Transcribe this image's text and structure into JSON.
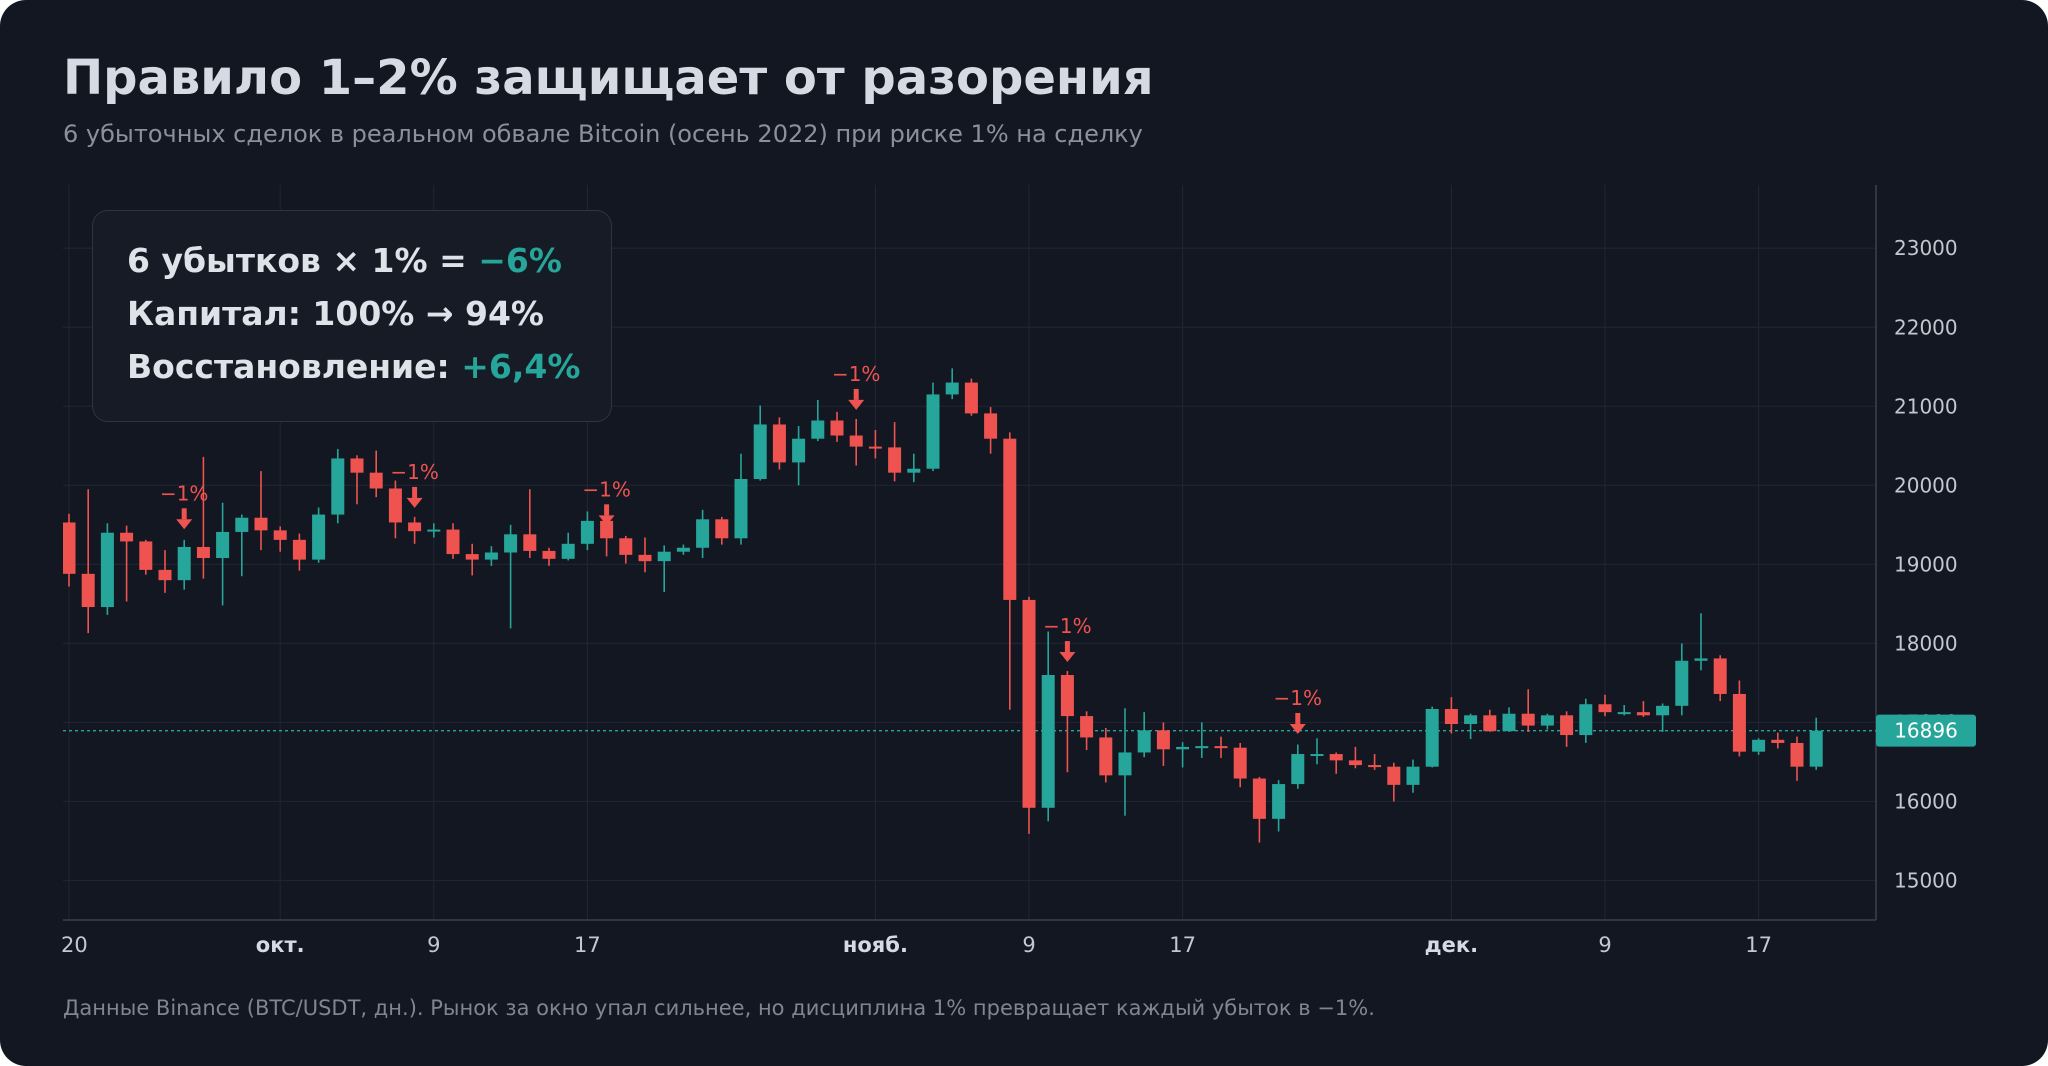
{
  "title": "Правило 1–2% защищает от разорения",
  "subtitle": "6 убыточных сделок в реальном обвале Bitcoin (осень 2022) при риске 1% на сделку",
  "footnote": "Данные Binance (BTC/USDT, дн.). Рынок за окно упал сильнее, но дисциплина 1% превращает каждый убыток в −1%.",
  "info": {
    "line1_prefix": "6 убытков × 1% = ",
    "line1_value": "−6%",
    "line2": "Капитал: 100% → 94%",
    "line3_prefix": "Восстановление: ",
    "line3_value": "+6,4%"
  },
  "colors": {
    "background": "#131722",
    "up": "#26a69a",
    "down": "#ef5350",
    "grid": "#1f2430",
    "marker": "#ef5350"
  },
  "chart_data": {
    "type": "candlestick",
    "title": "",
    "xlabel": "",
    "ylabel": "",
    "ylim": [
      14500,
      23800
    ],
    "grid": true,
    "y_ticks": [
      15000,
      16000,
      17000,
      18000,
      19000,
      20000,
      21000,
      22000,
      23000
    ],
    "x_ticks": [
      {
        "date": "2022-09-20",
        "label": "20",
        "bold": false
      },
      {
        "date": "2022-10-01",
        "label": "окт.",
        "bold": true
      },
      {
        "date": "2022-10-09",
        "label": "9",
        "bold": false
      },
      {
        "date": "2022-10-17",
        "label": "17",
        "bold": false
      },
      {
        "date": "2022-11-01",
        "label": "нояб.",
        "bold": true
      },
      {
        "date": "2022-11-09",
        "label": "9",
        "bold": false
      },
      {
        "date": "2022-11-17",
        "label": "17",
        "bold": false
      },
      {
        "date": "2022-12-01",
        "label": "дек.",
        "bold": true
      },
      {
        "date": "2022-12-09",
        "label": "9",
        "bold": false
      },
      {
        "date": "2022-12-17",
        "label": "17",
        "bold": false
      }
    ],
    "last_price": 16896,
    "candles": [
      {
        "date": "2022-09-20",
        "o": 19530,
        "h": 19640,
        "l": 18720,
        "c": 18880
      },
      {
        "date": "2022-09-21",
        "o": 18880,
        "h": 19950,
        "l": 18130,
        "c": 18460
      },
      {
        "date": "2022-09-22",
        "o": 18460,
        "h": 19520,
        "l": 18360,
        "c": 19400
      },
      {
        "date": "2022-09-23",
        "o": 19400,
        "h": 19490,
        "l": 18530,
        "c": 19290
      },
      {
        "date": "2022-09-24",
        "o": 19290,
        "h": 19310,
        "l": 18870,
        "c": 18930
      },
      {
        "date": "2022-09-25",
        "o": 18930,
        "h": 19180,
        "l": 18640,
        "c": 18800
      },
      {
        "date": "2022-09-26",
        "o": 18800,
        "h": 19310,
        "l": 18680,
        "c": 19220
      },
      {
        "date": "2022-09-27",
        "o": 19220,
        "h": 20360,
        "l": 18820,
        "c": 19080
      },
      {
        "date": "2022-09-28",
        "o": 19080,
        "h": 19780,
        "l": 18480,
        "c": 19410
      },
      {
        "date": "2022-09-29",
        "o": 19410,
        "h": 19630,
        "l": 18850,
        "c": 19590
      },
      {
        "date": "2022-09-30",
        "o": 19590,
        "h": 20180,
        "l": 19180,
        "c": 19430
      },
      {
        "date": "2022-10-01",
        "o": 19430,
        "h": 19480,
        "l": 19160,
        "c": 19310
      },
      {
        "date": "2022-10-02",
        "o": 19310,
        "h": 19390,
        "l": 18920,
        "c": 19060
      },
      {
        "date": "2022-10-03",
        "o": 19060,
        "h": 19720,
        "l": 19020,
        "c": 19630
      },
      {
        "date": "2022-10-04",
        "o": 19630,
        "h": 20460,
        "l": 19520,
        "c": 20340
      },
      {
        "date": "2022-10-05",
        "o": 20340,
        "h": 20380,
        "l": 19760,
        "c": 20160
      },
      {
        "date": "2022-10-06",
        "o": 20160,
        "h": 20440,
        "l": 19850,
        "c": 19960
      },
      {
        "date": "2022-10-07",
        "o": 19960,
        "h": 20060,
        "l": 19330,
        "c": 19530
      },
      {
        "date": "2022-10-08",
        "o": 19530,
        "h": 19600,
        "l": 19260,
        "c": 19420
      },
      {
        "date": "2022-10-09",
        "o": 19420,
        "h": 19520,
        "l": 19340,
        "c": 19440
      },
      {
        "date": "2022-10-10",
        "o": 19440,
        "h": 19520,
        "l": 19070,
        "c": 19130
      },
      {
        "date": "2022-10-11",
        "o": 19130,
        "h": 19260,
        "l": 18860,
        "c": 19060
      },
      {
        "date": "2022-10-12",
        "o": 19060,
        "h": 19230,
        "l": 18980,
        "c": 19150
      },
      {
        "date": "2022-10-13",
        "o": 19150,
        "h": 19500,
        "l": 18190,
        "c": 19380
      },
      {
        "date": "2022-10-14",
        "o": 19380,
        "h": 19950,
        "l": 19080,
        "c": 19170
      },
      {
        "date": "2022-10-15",
        "o": 19170,
        "h": 19210,
        "l": 18980,
        "c": 19070
      },
      {
        "date": "2022-10-16",
        "o": 19070,
        "h": 19400,
        "l": 19050,
        "c": 19260
      },
      {
        "date": "2022-10-17",
        "o": 19260,
        "h": 19670,
        "l": 19180,
        "c": 19550
      },
      {
        "date": "2022-10-18",
        "o": 19550,
        "h": 19700,
        "l": 19100,
        "c": 19330
      },
      {
        "date": "2022-10-19",
        "o": 19330,
        "h": 19360,
        "l": 19010,
        "c": 19120
      },
      {
        "date": "2022-10-20",
        "o": 19120,
        "h": 19340,
        "l": 18900,
        "c": 19040
      },
      {
        "date": "2022-10-21",
        "o": 19040,
        "h": 19240,
        "l": 18650,
        "c": 19160
      },
      {
        "date": "2022-10-22",
        "o": 19160,
        "h": 19250,
        "l": 19120,
        "c": 19210
      },
      {
        "date": "2022-10-23",
        "o": 19210,
        "h": 19690,
        "l": 19080,
        "c": 19570
      },
      {
        "date": "2022-10-24",
        "o": 19570,
        "h": 19600,
        "l": 19250,
        "c": 19330
      },
      {
        "date": "2022-10-25",
        "o": 19330,
        "h": 20400,
        "l": 19250,
        "c": 20080
      },
      {
        "date": "2022-10-26",
        "o": 20080,
        "h": 21010,
        "l": 20060,
        "c": 20770
      },
      {
        "date": "2022-10-27",
        "o": 20770,
        "h": 20860,
        "l": 20200,
        "c": 20290
      },
      {
        "date": "2022-10-28",
        "o": 20290,
        "h": 20750,
        "l": 20000,
        "c": 20590
      },
      {
        "date": "2022-10-29",
        "o": 20590,
        "h": 21080,
        "l": 20560,
        "c": 20820
      },
      {
        "date": "2022-10-30",
        "o": 20820,
        "h": 20930,
        "l": 20550,
        "c": 20630
      },
      {
        "date": "2022-10-31",
        "o": 20630,
        "h": 20840,
        "l": 20250,
        "c": 20490
      },
      {
        "date": "2022-11-01",
        "o": 20490,
        "h": 20700,
        "l": 20340,
        "c": 20480
      },
      {
        "date": "2022-11-02",
        "o": 20480,
        "h": 20800,
        "l": 20050,
        "c": 20160
      },
      {
        "date": "2022-11-03",
        "o": 20160,
        "h": 20400,
        "l": 20040,
        "c": 20210
      },
      {
        "date": "2022-11-04",
        "o": 20210,
        "h": 21300,
        "l": 20180,
        "c": 21150
      },
      {
        "date": "2022-11-05",
        "o": 21150,
        "h": 21480,
        "l": 21090,
        "c": 21300
      },
      {
        "date": "2022-11-06",
        "o": 21300,
        "h": 21350,
        "l": 20880,
        "c": 20910
      },
      {
        "date": "2022-11-07",
        "o": 20910,
        "h": 20990,
        "l": 20400,
        "c": 20590
      },
      {
        "date": "2022-11-08",
        "o": 20590,
        "h": 20670,
        "l": 17160,
        "c": 18550
      },
      {
        "date": "2022-11-09",
        "o": 18550,
        "h": 18590,
        "l": 15590,
        "c": 15920
      },
      {
        "date": "2022-11-10",
        "o": 15920,
        "h": 18150,
        "l": 15750,
        "c": 17600
      },
      {
        "date": "2022-11-11",
        "o": 17600,
        "h": 17650,
        "l": 16370,
        "c": 17080
      },
      {
        "date": "2022-11-12",
        "o": 17080,
        "h": 17140,
        "l": 16650,
        "c": 16810
      },
      {
        "date": "2022-11-13",
        "o": 16810,
        "h": 16930,
        "l": 16240,
        "c": 16330
      },
      {
        "date": "2022-11-14",
        "o": 16330,
        "h": 17180,
        "l": 15820,
        "c": 16620
      },
      {
        "date": "2022-11-15",
        "o": 16620,
        "h": 17130,
        "l": 16560,
        "c": 16900
      },
      {
        "date": "2022-11-16",
        "o": 16900,
        "h": 17000,
        "l": 16450,
        "c": 16660
      },
      {
        "date": "2022-11-17",
        "o": 16660,
        "h": 16750,
        "l": 16430,
        "c": 16690
      },
      {
        "date": "2022-11-18",
        "o": 16690,
        "h": 17000,
        "l": 16550,
        "c": 16700
      },
      {
        "date": "2022-11-19",
        "o": 16700,
        "h": 16820,
        "l": 16550,
        "c": 16680
      },
      {
        "date": "2022-11-20",
        "o": 16680,
        "h": 16740,
        "l": 16180,
        "c": 16290
      },
      {
        "date": "2022-11-21",
        "o": 16290,
        "h": 16310,
        "l": 15480,
        "c": 15780
      },
      {
        "date": "2022-11-22",
        "o": 15780,
        "h": 16270,
        "l": 15620,
        "c": 16220
      },
      {
        "date": "2022-11-23",
        "o": 16220,
        "h": 16720,
        "l": 16160,
        "c": 16600
      },
      {
        "date": "2022-11-24",
        "o": 16600,
        "h": 16800,
        "l": 16470,
        "c": 16600
      },
      {
        "date": "2022-11-25",
        "o": 16600,
        "h": 16620,
        "l": 16350,
        "c": 16520
      },
      {
        "date": "2022-11-26",
        "o": 16520,
        "h": 16690,
        "l": 16420,
        "c": 16460
      },
      {
        "date": "2022-11-27",
        "o": 16460,
        "h": 16600,
        "l": 16400,
        "c": 16440
      },
      {
        "date": "2022-11-28",
        "o": 16440,
        "h": 16490,
        "l": 16000,
        "c": 16210
      },
      {
        "date": "2022-11-29",
        "o": 16210,
        "h": 16530,
        "l": 16110,
        "c": 16440
      },
      {
        "date": "2022-11-30",
        "o": 16440,
        "h": 17200,
        "l": 16430,
        "c": 17170
      },
      {
        "date": "2022-12-01",
        "o": 17170,
        "h": 17320,
        "l": 16860,
        "c": 16980
      },
      {
        "date": "2022-12-02",
        "o": 16980,
        "h": 17110,
        "l": 16790,
        "c": 17090
      },
      {
        "date": "2022-12-03",
        "o": 17090,
        "h": 17160,
        "l": 16880,
        "c": 16890
      },
      {
        "date": "2022-12-04",
        "o": 16890,
        "h": 17190,
        "l": 16880,
        "c": 17110
      },
      {
        "date": "2022-12-05",
        "o": 17110,
        "h": 17420,
        "l": 16880,
        "c": 16960
      },
      {
        "date": "2022-12-06",
        "o": 16960,
        "h": 17110,
        "l": 16910,
        "c": 17090
      },
      {
        "date": "2022-12-07",
        "o": 17090,
        "h": 17140,
        "l": 16690,
        "c": 16840
      },
      {
        "date": "2022-12-08",
        "o": 16840,
        "h": 17300,
        "l": 16740,
        "c": 17230
      },
      {
        "date": "2022-12-09",
        "o": 17230,
        "h": 17350,
        "l": 17080,
        "c": 17130
      },
      {
        "date": "2022-12-10",
        "o": 17130,
        "h": 17220,
        "l": 17090,
        "c": 17130
      },
      {
        "date": "2022-12-11",
        "o": 17130,
        "h": 17270,
        "l": 17070,
        "c": 17090
      },
      {
        "date": "2022-12-12",
        "o": 17090,
        "h": 17240,
        "l": 16880,
        "c": 17210
      },
      {
        "date": "2022-12-13",
        "o": 17210,
        "h": 18000,
        "l": 17090,
        "c": 17780
      },
      {
        "date": "2022-12-14",
        "o": 17780,
        "h": 18380,
        "l": 17660,
        "c": 17810
      },
      {
        "date": "2022-12-15",
        "o": 17810,
        "h": 17850,
        "l": 17270,
        "c": 17360
      },
      {
        "date": "2022-12-16",
        "o": 17360,
        "h": 17530,
        "l": 16570,
        "c": 16630
      },
      {
        "date": "2022-12-17",
        "o": 16630,
        "h": 16800,
        "l": 16590,
        "c": 16780
      },
      {
        "date": "2022-12-18",
        "o": 16780,
        "h": 16870,
        "l": 16670,
        "c": 16740
      },
      {
        "date": "2022-12-19",
        "o": 16740,
        "h": 16820,
        "l": 16260,
        "c": 16440
      },
      {
        "date": "2022-12-20",
        "o": 16440,
        "h": 17060,
        "l": 16400,
        "c": 16896
      }
    ],
    "loss_markers": [
      {
        "date": "2022-09-26",
        "price": 19330,
        "label": "−1%"
      },
      {
        "date": "2022-10-08",
        "price": 19600,
        "label": "−1%"
      },
      {
        "date": "2022-10-18",
        "price": 19380,
        "label": "−1%"
      },
      {
        "date": "2022-10-31",
        "price": 20840,
        "label": "−1%"
      },
      {
        "date": "2022-11-11",
        "price": 17650,
        "label": "−1%"
      },
      {
        "date": "2022-11-23",
        "price": 16740,
        "label": "−1%"
      }
    ]
  }
}
